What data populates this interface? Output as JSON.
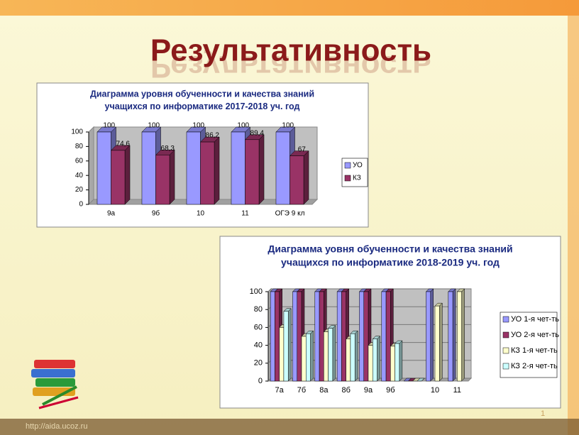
{
  "slide": {
    "title": "Результативность",
    "page_number": "1",
    "footer_url": "http://aida.ucoz.ru"
  },
  "chart_data": [
    {
      "type": "bar",
      "title": [
        "Диаграмма уровня обученности и качества знаний",
        "учащихся по информатике 2017-2018 уч. год"
      ],
      "categories": [
        "9а",
        "9б",
        "10",
        "11",
        "ОГЭ 9 кл"
      ],
      "series": [
        {
          "name": "УО",
          "color": "#9999ff",
          "values": [
            100,
            100,
            100,
            100,
            100
          ]
        },
        {
          "name": "КЗ",
          "color": "#993366",
          "values": [
            74.6,
            68.3,
            86.2,
            89.4,
            67
          ],
          "value_labels": [
            "74,6",
            "68,3",
            "86,2",
            "89,4",
            "67"
          ]
        }
      ],
      "ylim": [
        0,
        100
      ],
      "yticks": [
        0,
        20,
        40,
        60,
        80,
        100
      ],
      "grid": false,
      "data_labels": true,
      "legend": "right"
    },
    {
      "type": "bar",
      "title": [
        "Диаграмма уовня обученности и качества знаний",
        "учащихся по информатике 2018-2019 уч. год"
      ],
      "categories": [
        "7а",
        "7б",
        "8а",
        "8б",
        "9а",
        "9б",
        null,
        "10",
        "11"
      ],
      "series": [
        {
          "name": "УО 1-я чет-ть",
          "color": "#9999ff",
          "values": [
            100,
            100,
            100,
            100,
            100,
            100,
            0,
            100,
            100
          ]
        },
        {
          "name": "УО 2-я чет-ть",
          "color": "#993366",
          "values": [
            100,
            100,
            100,
            100,
            100,
            100,
            0,
            null,
            null
          ]
        },
        {
          "name": "КЗ 1-я чет-ть",
          "color": "#ffffcc",
          "values": [
            60,
            50,
            55,
            47,
            40,
            39,
            0,
            84,
            100
          ]
        },
        {
          "name": "КЗ 2-я чет-ть",
          "color": "#ccffff",
          "values": [
            78,
            53,
            59,
            53,
            47,
            42,
            0,
            null,
            null
          ]
        }
      ],
      "ylim": [
        0,
        100
      ],
      "yticks": [
        0,
        20,
        40,
        60,
        80,
        100
      ],
      "grid": true,
      "data_labels": false,
      "legend": "right"
    }
  ]
}
